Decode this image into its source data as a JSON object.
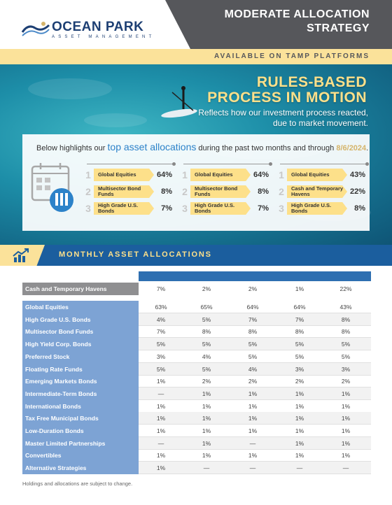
{
  "header": {
    "logo_name": "OCEAN PARK",
    "logo_sub": "ASSET MANAGEMENT",
    "title_line_1": "MODERATE ALLOCATION",
    "title_line_2": "STRATEGY",
    "platform_text": "AVAILABLE ON TAMP PLATFORMS"
  },
  "hero": {
    "title_line_1": "RULES-BASED",
    "title_line_2": "PROCESS IN MOTION",
    "sub_line_1": "Reflects how our investment process reacted,",
    "sub_line_2": "due to market movement."
  },
  "panel": {
    "intro_prefix": "Below highlights our ",
    "intro_highlight": "top asset allocations",
    "intro_middle": " during the past two months and through ",
    "intro_date": "8/6/2024",
    "intro_end": ".",
    "columns": [
      {
        "items": [
          {
            "rank": "1",
            "label": "Global Equities",
            "value": "64%"
          },
          {
            "rank": "2",
            "label": "Multisector Bond Funds",
            "value": "8%"
          },
          {
            "rank": "3",
            "label": "High Grade U.S. Bonds",
            "value": "7%"
          }
        ]
      },
      {
        "items": [
          {
            "rank": "1",
            "label": "Global Equities",
            "value": "64%"
          },
          {
            "rank": "2",
            "label": "Multisector Bond Funds",
            "value": "8%"
          },
          {
            "rank": "3",
            "label": "High Grade U.S. Bonds",
            "value": "7%"
          }
        ]
      },
      {
        "items": [
          {
            "rank": "1",
            "label": "Global Equities",
            "value": "43%"
          },
          {
            "rank": "2",
            "label": "Cash and Temporary Havens",
            "value": "22%"
          },
          {
            "rank": "3",
            "label": "High Grade U.S. Bonds",
            "value": "8%"
          }
        ]
      }
    ]
  },
  "monthly": {
    "title": "MONTHLY ASSET ALLOCATIONS"
  },
  "table": {
    "cash_row": {
      "label": "Cash and Temporary Havens",
      "values": [
        "7%",
        "2%",
        "2%",
        "1%",
        "22%"
      ]
    },
    "rows": [
      {
        "label": "Global Equities",
        "values": [
          "63%",
          "65%",
          "64%",
          "64%",
          "43%"
        ]
      },
      {
        "label": "High Grade U.S. Bonds",
        "values": [
          "4%",
          "5%",
          "7%",
          "7%",
          "8%"
        ]
      },
      {
        "label": "Multisector Bond Funds",
        "values": [
          "7%",
          "8%",
          "8%",
          "8%",
          "8%"
        ]
      },
      {
        "label": "High Yield Corp. Bonds",
        "values": [
          "5%",
          "5%",
          "5%",
          "5%",
          "5%"
        ]
      },
      {
        "label": "Preferred Stock",
        "values": [
          "3%",
          "4%",
          "5%",
          "5%",
          "5%"
        ]
      },
      {
        "label": "Floating Rate Funds",
        "values": [
          "5%",
          "5%",
          "4%",
          "3%",
          "3%"
        ]
      },
      {
        "label": "Emerging Markets Bonds",
        "values": [
          "1%",
          "2%",
          "2%",
          "2%",
          "2%"
        ]
      },
      {
        "label": "Intermediate-Term Bonds",
        "values": [
          "—",
          "1%",
          "1%",
          "1%",
          "1%"
        ]
      },
      {
        "label": "International Bonds",
        "values": [
          "1%",
          "1%",
          "1%",
          "1%",
          "1%"
        ]
      },
      {
        "label": "Tax Free Municipal Bonds",
        "values": [
          "1%",
          "1%",
          "1%",
          "1%",
          "1%"
        ]
      },
      {
        "label": "Low-Duration Bonds",
        "values": [
          "1%",
          "1%",
          "1%",
          "1%",
          "1%"
        ]
      },
      {
        "label": "Master Limited Partnerships",
        "values": [
          "—",
          "1%",
          "—",
          "1%",
          "1%"
        ]
      },
      {
        "label": "Convertibles",
        "values": [
          "1%",
          "1%",
          "1%",
          "1%",
          "1%"
        ]
      },
      {
        "label": "Alternative Strategies",
        "values": [
          "1%",
          "—",
          "—",
          "—",
          "—"
        ]
      }
    ]
  },
  "footnote": "Holdings and allocations are subject to change.",
  "colors": {
    "navy": "#1d3f73",
    "header_gray": "#56575b",
    "accent_yellow": "#fbe29a",
    "band_blue": "#1b5e9e",
    "label_blue": "#7da3d4",
    "label_gray": "#8f8f91",
    "highlight_blue": "#2c82c9"
  }
}
